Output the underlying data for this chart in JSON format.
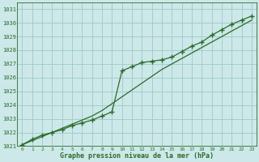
{
  "title": "Graphe pression niveau de la mer (hPa)",
  "xlabel": "Graphe pression niveau de la mer (hPa)",
  "background_color": "#cce8e8",
  "plot_bg_color": "#cce8e8",
  "grid_color": "#9ec8c8",
  "line_color": "#2a6b2a",
  "hours": [
    0,
    1,
    2,
    3,
    4,
    5,
    6,
    7,
    8,
    9,
    10,
    11,
    12,
    13,
    14,
    15,
    16,
    17,
    18,
    19,
    20,
    21,
    22,
    23
  ],
  "pressure_markers": [
    1021.1,
    1021.5,
    1021.8,
    1022.0,
    1022.2,
    1022.5,
    1022.7,
    1022.9,
    1023.2,
    1023.5,
    1026.5,
    1026.8,
    1027.1,
    1027.2,
    1027.3,
    1027.5,
    1027.9,
    1028.3,
    1028.6,
    1029.1,
    1029.5,
    1029.9,
    1030.2,
    1030.5
  ],
  "pressure_smooth": [
    1021.1,
    1021.4,
    1021.7,
    1022.0,
    1022.3,
    1022.6,
    1022.9,
    1023.2,
    1023.6,
    1024.1,
    1024.6,
    1025.1,
    1025.6,
    1026.1,
    1026.6,
    1027.0,
    1027.4,
    1027.8,
    1028.2,
    1028.6,
    1029.0,
    1029.4,
    1029.8,
    1030.2
  ],
  "ylim": [
    1021.0,
    1031.5
  ],
  "yticks": [
    1021,
    1022,
    1023,
    1024,
    1025,
    1026,
    1027,
    1028,
    1029,
    1030,
    1031
  ],
  "xlim": [
    -0.5,
    23.5
  ],
  "xticks": [
    0,
    1,
    2,
    3,
    4,
    5,
    6,
    7,
    8,
    9,
    10,
    11,
    12,
    13,
    14,
    15,
    16,
    17,
    18,
    19,
    20,
    21,
    22,
    23
  ]
}
